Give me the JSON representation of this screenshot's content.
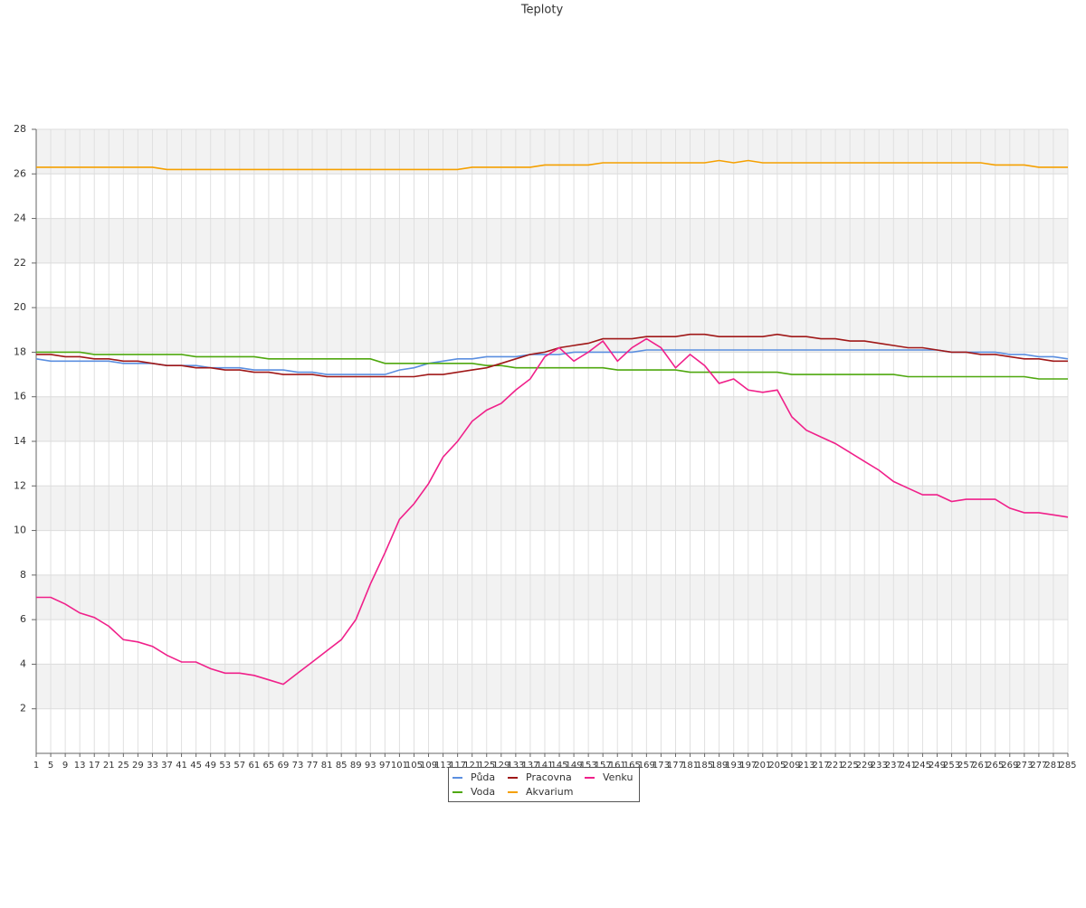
{
  "chart_data": {
    "type": "line",
    "title": "Teploty",
    "categories": [
      "1",
      "5",
      "9",
      "13",
      "17",
      "21",
      "25",
      "29",
      "33",
      "37",
      "41",
      "45",
      "49",
      "53",
      "57",
      "61",
      "65",
      "69",
      "73",
      "77",
      "81",
      "85",
      "89",
      "93",
      "97",
      "101",
      "105",
      "109",
      "113",
      "117",
      "121",
      "125",
      "129",
      "133",
      "137",
      "141",
      "145",
      "149",
      "153",
      "157",
      "161",
      "165",
      "169",
      "173",
      "177",
      "181",
      "185",
      "189",
      "193",
      "197",
      "201",
      "205",
      "209",
      "213",
      "217",
      "221",
      "225",
      "229",
      "233",
      "237",
      "241",
      "245",
      "249",
      "253",
      "257",
      "261",
      "265",
      "269",
      "273",
      "277",
      "281",
      "285"
    ],
    "series": [
      {
        "name": "Půda",
        "color": "#5b8fe0",
        "values": [
          17.7,
          17.6,
          17.6,
          17.6,
          17.6,
          17.6,
          17.5,
          17.5,
          17.5,
          17.4,
          17.4,
          17.4,
          17.3,
          17.3,
          17.3,
          17.2,
          17.2,
          17.2,
          17.1,
          17.1,
          17.0,
          17.0,
          17.0,
          17.0,
          17.0,
          17.2,
          17.3,
          17.5,
          17.6,
          17.7,
          17.7,
          17.8,
          17.8,
          17.8,
          17.9,
          17.9,
          17.9,
          18.0,
          18.0,
          18.0,
          18.0,
          18.0,
          18.1,
          18.1,
          18.1,
          18.1,
          18.1,
          18.1,
          18.1,
          18.1,
          18.1,
          18.1,
          18.1,
          18.1,
          18.1,
          18.1,
          18.1,
          18.1,
          18.1,
          18.1,
          18.1,
          18.1,
          18.1,
          18.0,
          18.0,
          18.0,
          18.0,
          17.9,
          17.9,
          17.8,
          17.8,
          17.7
        ]
      },
      {
        "name": "Voda",
        "color": "#4fa80f",
        "values": [
          18.0,
          18.0,
          18.0,
          18.0,
          17.9,
          17.9,
          17.9,
          17.9,
          17.9,
          17.9,
          17.9,
          17.8,
          17.8,
          17.8,
          17.8,
          17.8,
          17.7,
          17.7,
          17.7,
          17.7,
          17.7,
          17.7,
          17.7,
          17.7,
          17.5,
          17.5,
          17.5,
          17.5,
          17.5,
          17.5,
          17.5,
          17.4,
          17.4,
          17.3,
          17.3,
          17.3,
          17.3,
          17.3,
          17.3,
          17.3,
          17.2,
          17.2,
          17.2,
          17.2,
          17.2,
          17.1,
          17.1,
          17.1,
          17.1,
          17.1,
          17.1,
          17.1,
          17.0,
          17.0,
          17.0,
          17.0,
          17.0,
          17.0,
          17.0,
          17.0,
          16.9,
          16.9,
          16.9,
          16.9,
          16.9,
          16.9,
          16.9,
          16.9,
          16.9,
          16.8,
          16.8,
          16.8
        ]
      },
      {
        "name": "Pracovna",
        "color": "#a01818",
        "values": [
          17.9,
          17.9,
          17.8,
          17.8,
          17.7,
          17.7,
          17.6,
          17.6,
          17.5,
          17.4,
          17.4,
          17.3,
          17.3,
          17.2,
          17.2,
          17.1,
          17.1,
          17.0,
          17.0,
          17.0,
          16.9,
          16.9,
          16.9,
          16.9,
          16.9,
          16.9,
          16.9,
          17.0,
          17.0,
          17.1,
          17.2,
          17.3,
          17.5,
          17.7,
          17.9,
          18.0,
          18.2,
          18.3,
          18.4,
          18.6,
          18.6,
          18.6,
          18.7,
          18.7,
          18.7,
          18.8,
          18.8,
          18.7,
          18.7,
          18.7,
          18.7,
          18.8,
          18.7,
          18.7,
          18.6,
          18.6,
          18.5,
          18.5,
          18.4,
          18.3,
          18.2,
          18.2,
          18.1,
          18.0,
          18.0,
          17.9,
          17.9,
          17.8,
          17.7,
          17.7,
          17.6,
          17.6
        ]
      },
      {
        "name": "Akvarium",
        "color": "#f5a000",
        "values": [
          26.3,
          26.3,
          26.3,
          26.3,
          26.3,
          26.3,
          26.3,
          26.3,
          26.3,
          26.2,
          26.2,
          26.2,
          26.2,
          26.2,
          26.2,
          26.2,
          26.2,
          26.2,
          26.2,
          26.2,
          26.2,
          26.2,
          26.2,
          26.2,
          26.2,
          26.2,
          26.2,
          26.2,
          26.2,
          26.2,
          26.3,
          26.3,
          26.3,
          26.3,
          26.3,
          26.4,
          26.4,
          26.4,
          26.4,
          26.5,
          26.5,
          26.5,
          26.5,
          26.5,
          26.5,
          26.5,
          26.5,
          26.6,
          26.5,
          26.6,
          26.5,
          26.5,
          26.5,
          26.5,
          26.5,
          26.5,
          26.5,
          26.5,
          26.5,
          26.5,
          26.5,
          26.5,
          26.5,
          26.5,
          26.5,
          26.5,
          26.4,
          26.4,
          26.4,
          26.3,
          26.3,
          26.3
        ]
      },
      {
        "name": "Venku",
        "color": "#f0208a",
        "values": [
          7.0,
          7.0,
          6.7,
          6.3,
          6.1,
          5.7,
          5.1,
          5.0,
          4.8,
          4.4,
          4.1,
          4.1,
          3.8,
          3.6,
          3.6,
          3.5,
          3.3,
          3.1,
          3.6,
          4.1,
          4.6,
          5.1,
          6.0,
          7.6,
          9.0,
          10.5,
          11.2,
          12.1,
          13.3,
          14.0,
          14.9,
          15.4,
          15.7,
          16.3,
          16.8,
          17.8,
          18.2,
          17.6,
          18.0,
          18.5,
          17.6,
          18.2,
          18.6,
          18.2,
          17.3,
          17.9,
          17.4,
          16.6,
          16.8,
          16.3,
          16.2,
          16.3,
          15.1,
          14.5,
          14.2,
          13.9,
          13.5,
          13.1,
          12.7,
          12.2,
          11.9,
          11.6,
          11.6,
          11.3,
          11.4,
          11.4,
          11.4,
          11.0,
          10.8,
          10.8,
          10.7,
          10.6
        ]
      }
    ],
    "ylim": [
      0,
      28
    ],
    "yticks": [
      2,
      4,
      6,
      8,
      10,
      12,
      14,
      16,
      18,
      20,
      22,
      24,
      26,
      28
    ],
    "grid": true
  }
}
